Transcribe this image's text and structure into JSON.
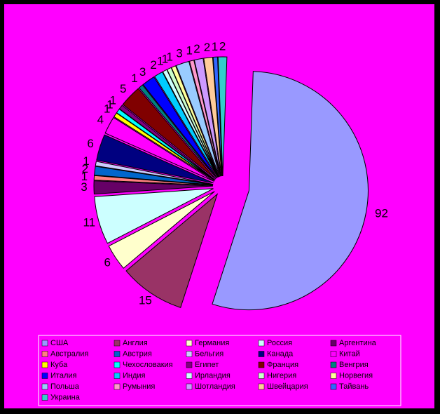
{
  "chart_data": {
    "type": "pie",
    "categories": [
      "США",
      "Англия",
      "Германия",
      "Россия",
      "Аргентина",
      "Австралия",
      "Австрия",
      "Бельгия",
      "Канада",
      "Китай",
      "Куба",
      "Чехословакия",
      "Египет",
      "Франция",
      "Венгрия",
      "Италия",
      "Индия",
      "Ирландия",
      "Нигерия",
      "Норвегия",
      "Польша",
      "Румыния",
      "Шотландия",
      "Швейцария",
      "Тайвань",
      "Украина"
    ],
    "values": [
      92,
      15,
      6,
      11,
      3,
      1,
      2,
      1,
      6,
      4,
      1,
      1,
      1,
      5,
      1,
      3,
      2,
      1,
      1,
      1,
      3,
      1,
      2,
      2,
      1,
      2
    ],
    "colors": [
      "#9999ff",
      "#993366",
      "#ffffcc",
      "#ccffff",
      "#660066",
      "#ff8080",
      "#0066cc",
      "#ccccff",
      "#000080",
      "#ff00ff",
      "#ffff00",
      "#00ffff",
      "#800080",
      "#800000",
      "#008080",
      "#0000ff",
      "#00ccff",
      "#ccffff",
      "#ccffcc",
      "#ffff99",
      "#99ccff",
      "#ff99cc",
      "#cc99ff",
      "#ffcc99",
      "#3366ff",
      "#33cccc"
    ]
  }
}
